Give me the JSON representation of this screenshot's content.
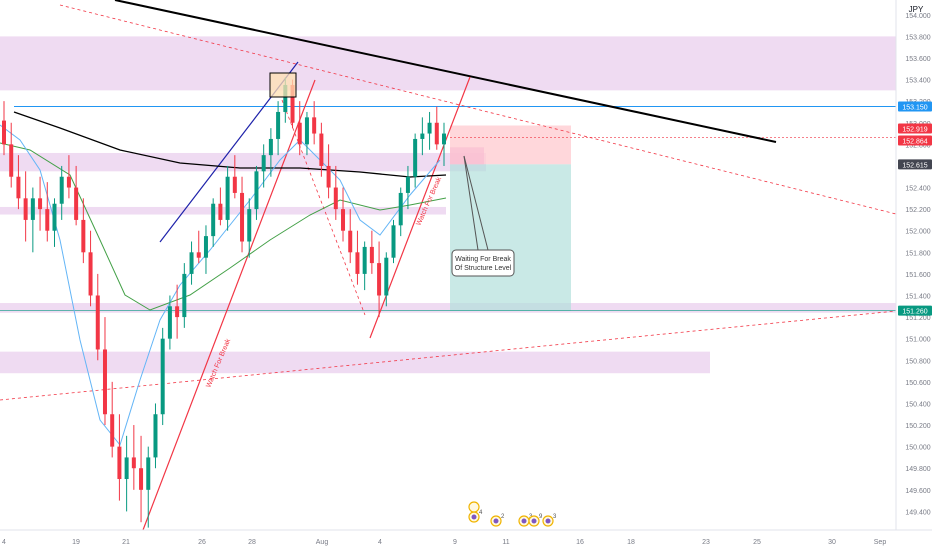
{
  "currency": "JPY",
  "price_axis": {
    "ticks": [
      "154.000",
      "153.800",
      "153.600",
      "153.400",
      "153.200",
      "153.000",
      "152.800",
      "152.600",
      "152.400",
      "152.200",
      "152.000",
      "151.800",
      "151.600",
      "151.400",
      "151.200",
      "151.000",
      "150.800",
      "150.600",
      "150.400",
      "150.200",
      "150.000",
      "149.800",
      "149.600",
      "149.400",
      "149.200"
    ],
    "ylim": [
      149.2,
      154.1
    ]
  },
  "price_labels": [
    {
      "text": "153.150",
      "value": 153.15,
      "color": "#2196f3"
    },
    {
      "text": "152.919",
      "value": 152.919,
      "color": "#f23645"
    },
    {
      "text": "152.864",
      "value": 152.864,
      "color": "#f23645"
    },
    {
      "text": "152.615",
      "value": 152.615,
      "color": "#434651"
    },
    {
      "text": "151.260",
      "value": 151.26,
      "color": "#089981"
    }
  ],
  "time_axis": {
    "ticks": [
      "4",
      "19",
      "21",
      "26",
      "28",
      "Aug",
      "4",
      "9",
      "11",
      "16",
      "18",
      "23",
      "25",
      "30",
      "Sep"
    ]
  },
  "annotations": {
    "callout_line1": "Waiting For Break",
    "callout_line2": "Of Structure Level",
    "watch_break_1": "Watch For Break",
    "watch_break_2": "Watch For Break"
  },
  "event_markers": [
    "4",
    "2",
    "3",
    "9",
    "3"
  ],
  "colors": {
    "up": "#089981",
    "down": "#f23645",
    "zone": "#e1bee7",
    "ema_fast": "#64b5f6",
    "ema_mid": "#43a047",
    "ema_slow": "#000000",
    "trendline": "#000000",
    "channel": "#1e22aa",
    "tp_zone": "#b2dfdb",
    "sl_zone": "#ffcdd2"
  },
  "chart_data": {
    "type": "candlestick",
    "title": "",
    "y_unit": "JPY",
    "ylim": [
      149.2,
      154.1
    ],
    "key_levels": [
      153.15,
      152.919,
      152.864,
      152.615,
      151.26
    ],
    "zones": [
      {
        "from": 153.3,
        "to": 153.8
      },
      {
        "from": 152.55,
        "to": 152.72
      },
      {
        "from": 152.15,
        "to": 152.22
      },
      {
        "from": 151.24,
        "to": 151.33
      },
      {
        "from": 150.68,
        "to": 150.88
      }
    ],
    "trade_setup": {
      "entry": 152.615,
      "stop": 152.919,
      "target": 151.26
    },
    "candles": [
      [
        153.02,
        153.2,
        152.7,
        152.8
      ],
      [
        152.8,
        153.0,
        152.4,
        152.5
      ],
      [
        152.5,
        152.7,
        152.2,
        152.3
      ],
      [
        152.3,
        152.55,
        151.9,
        152.1
      ],
      [
        152.1,
        152.4,
        151.8,
        152.3
      ],
      [
        152.3,
        152.5,
        152.0,
        152.2
      ],
      [
        152.2,
        152.45,
        151.9,
        152.0
      ],
      [
        152.0,
        152.3,
        151.85,
        152.25
      ],
      [
        152.25,
        152.6,
        152.1,
        152.5
      ],
      [
        152.5,
        152.7,
        152.3,
        152.4
      ],
      [
        152.4,
        152.6,
        152.05,
        152.1
      ],
      [
        152.1,
        152.3,
        151.7,
        151.8
      ],
      [
        151.8,
        152.0,
        151.3,
        151.4
      ],
      [
        151.4,
        151.6,
        150.8,
        150.9
      ],
      [
        150.9,
        151.2,
        150.2,
        150.3
      ],
      [
        150.3,
        150.6,
        149.9,
        150.0
      ],
      [
        150.0,
        150.3,
        149.5,
        149.7
      ],
      [
        149.7,
        150.1,
        149.4,
        149.9
      ],
      [
        149.9,
        150.2,
        149.6,
        149.8
      ],
      [
        149.8,
        150.1,
        149.3,
        149.6
      ],
      [
        149.6,
        150.0,
        149.25,
        149.9
      ],
      [
        149.9,
        150.4,
        149.8,
        150.3
      ],
      [
        150.3,
        151.1,
        150.2,
        151.0
      ],
      [
        151.0,
        151.4,
        150.9,
        151.3
      ],
      [
        151.3,
        151.5,
        151.0,
        151.2
      ],
      [
        151.2,
        151.7,
        151.1,
        151.6
      ],
      [
        151.6,
        151.9,
        151.5,
        151.8
      ],
      [
        151.8,
        152.0,
        151.7,
        151.75
      ],
      [
        151.75,
        152.05,
        151.6,
        151.95
      ],
      [
        151.95,
        152.3,
        151.85,
        152.25
      ],
      [
        152.25,
        152.4,
        152.05,
        152.1
      ],
      [
        152.1,
        152.6,
        152.0,
        152.5
      ],
      [
        152.5,
        152.7,
        152.3,
        152.35
      ],
      [
        152.35,
        152.5,
        151.8,
        151.9
      ],
      [
        151.9,
        152.3,
        151.75,
        152.2
      ],
      [
        152.2,
        152.6,
        152.1,
        152.55
      ],
      [
        152.55,
        152.8,
        152.4,
        152.7
      ],
      [
        152.7,
        152.95,
        152.5,
        152.85
      ],
      [
        152.85,
        153.2,
        152.7,
        153.1
      ],
      [
        153.1,
        153.42,
        153.0,
        153.35
      ],
      [
        153.35,
        153.4,
        152.95,
        153.0
      ],
      [
        153.0,
        153.2,
        152.7,
        152.8
      ],
      [
        152.8,
        153.1,
        152.7,
        153.05
      ],
      [
        153.05,
        153.2,
        152.8,
        152.9
      ],
      [
        152.9,
        153.0,
        152.5,
        152.6
      ],
      [
        152.6,
        152.8,
        152.3,
        152.4
      ],
      [
        152.4,
        152.6,
        152.1,
        152.2
      ],
      [
        152.2,
        152.4,
        151.9,
        152.0
      ],
      [
        152.0,
        152.2,
        151.7,
        151.8
      ],
      [
        151.8,
        152.0,
        151.5,
        151.6
      ],
      [
        151.6,
        151.9,
        151.45,
        151.85
      ],
      [
        151.85,
        152.0,
        151.6,
        151.7
      ],
      [
        151.7,
        151.9,
        151.2,
        151.4
      ],
      [
        151.4,
        151.8,
        151.3,
        151.75
      ],
      [
        151.75,
        152.1,
        151.7,
        152.05
      ],
      [
        152.05,
        152.4,
        151.95,
        152.35
      ],
      [
        152.35,
        152.6,
        152.2,
        152.5
      ],
      [
        152.5,
        152.9,
        152.4,
        152.85
      ],
      [
        152.85,
        153.05,
        152.7,
        152.9
      ],
      [
        152.9,
        153.1,
        152.75,
        153.0
      ],
      [
        153.0,
        153.15,
        152.75,
        152.8
      ],
      [
        152.8,
        153.0,
        152.6,
        152.9
      ]
    ]
  }
}
